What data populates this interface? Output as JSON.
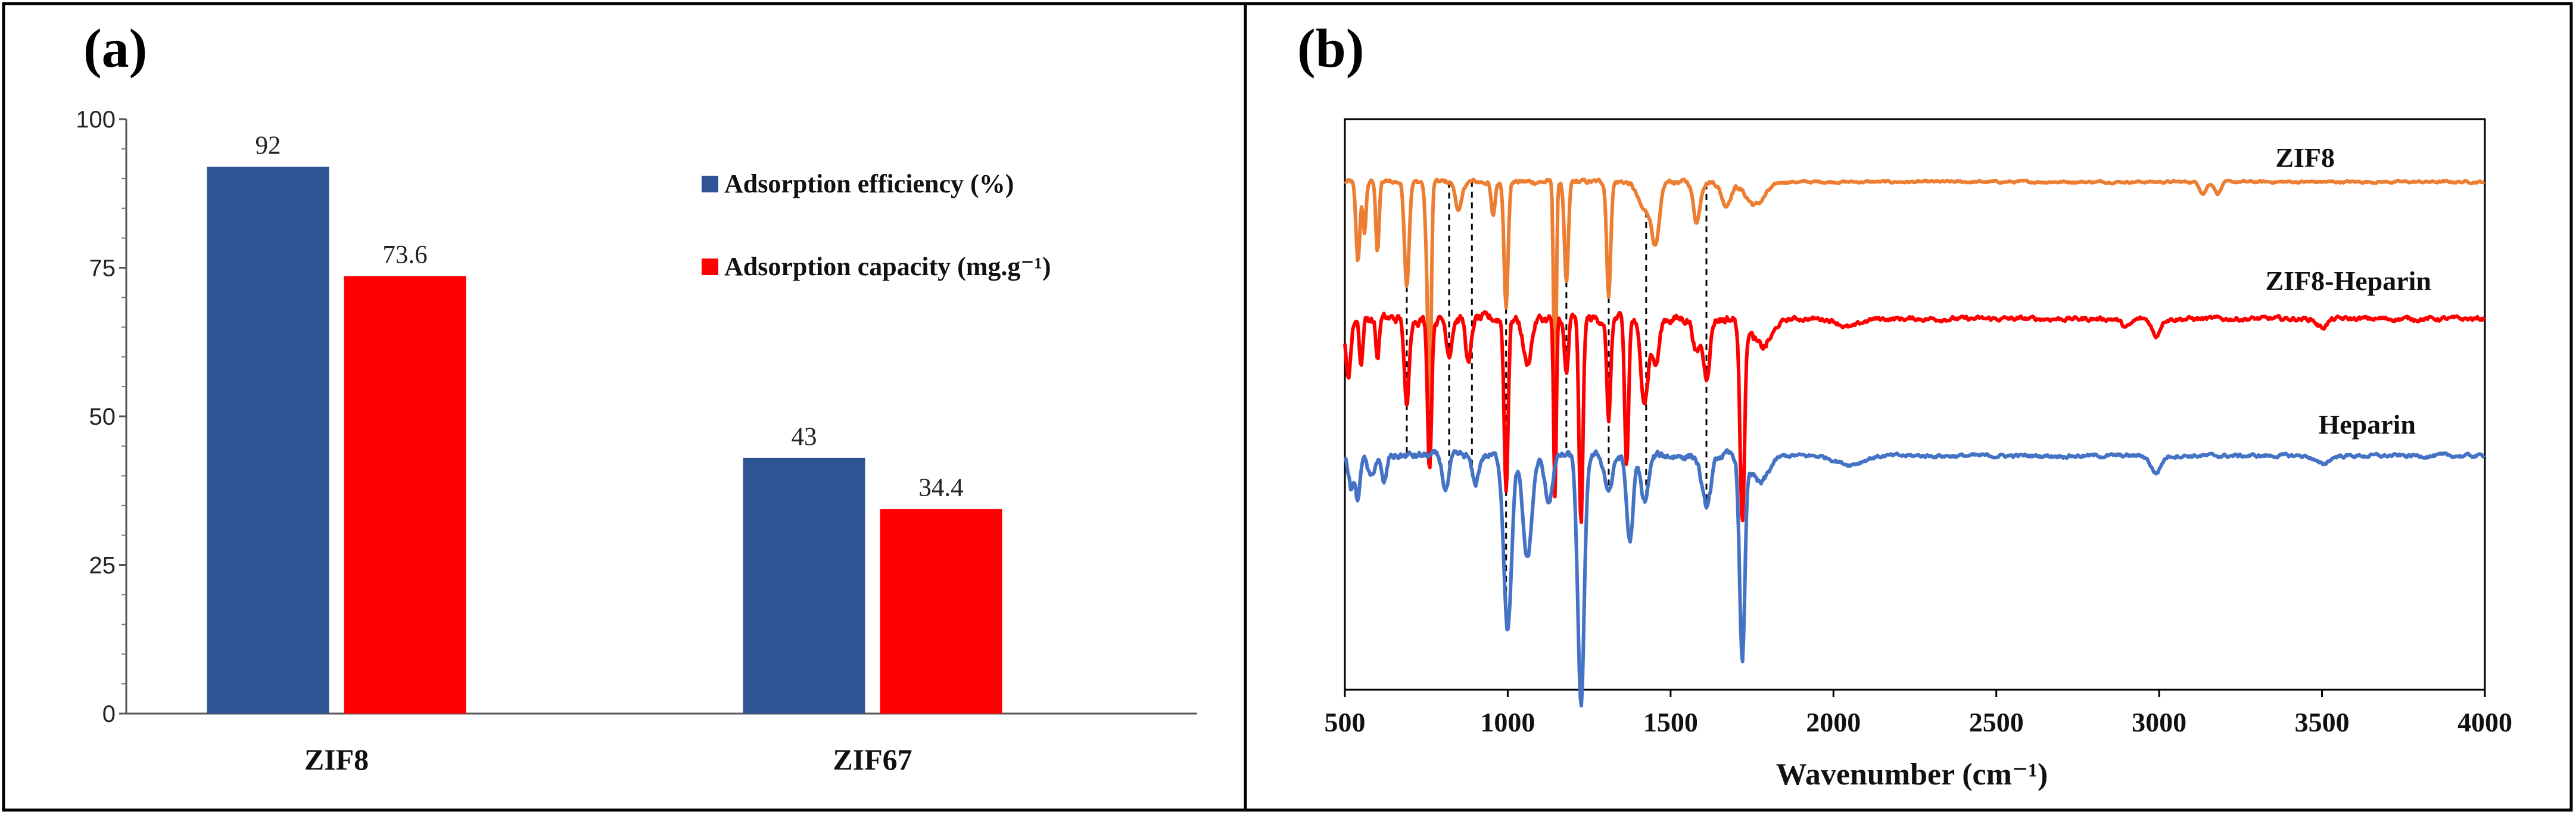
{
  "colors": {
    "efficiency": "#2F5496",
    "capacity": "#FF0000",
    "zif8_line": "#ED7D31",
    "zif8_heparin_line": "#FF0000",
    "heparin_line": "#4472C4"
  },
  "chart_data": [
    {
      "panel": "(a)",
      "type": "bar",
      "categories": [
        "ZIF8",
        "ZIF67"
      ],
      "series": [
        {
          "name": "Adsorption efficiency (%)",
          "values": [
            92,
            43
          ],
          "labels": [
            "92",
            "43"
          ]
        },
        {
          "name": "Adsorption capacity (mg.g⁻¹)",
          "values": [
            73.6,
            34.4
          ],
          "labels": [
            "73.6",
            "34.4"
          ]
        }
      ],
      "yticks": [
        "0",
        "25",
        "50",
        "75",
        "100"
      ],
      "ylim": [
        0,
        100
      ],
      "legend_position": "top-right"
    },
    {
      "panel": "(b)",
      "type": "line",
      "xlabel": "Wavenumber (cm⁻¹)",
      "xlim": [
        500,
        4000
      ],
      "xticks": [
        "500",
        "1000",
        "1500",
        "2000",
        "2500",
        "3000",
        "3500",
        "4000"
      ],
      "series": [
        {
          "name": "ZIF8",
          "baseline": 89,
          "noise": 0.6,
          "peaks": [
            [
              540,
              14,
              6
            ],
            [
              560,
              9,
              5
            ],
            [
              600,
              12,
              5
            ],
            [
              690,
              18,
              7
            ],
            [
              750,
              8,
              5
            ],
            [
              760,
              40,
              5
            ],
            [
              850,
              5,
              10
            ],
            [
              955,
              6,
              6
            ],
            [
              995,
              22,
              6
            ],
            [
              1145,
              40,
              4
            ],
            [
              1180,
              18,
              6
            ],
            [
              1310,
              20,
              6
            ],
            [
              1420,
              5,
              20
            ],
            [
              1455,
              10,
              12
            ],
            [
              1580,
              7,
              10
            ],
            [
              1670,
              4,
              14
            ],
            [
              1760,
              4,
              30
            ],
            [
              3135,
              2,
              10
            ],
            [
              3180,
              2,
              10
            ]
          ]
        },
        {
          "name": "ZIF8-Heparin",
          "baseline": 65,
          "noise": 1.2,
          "peaks": [
            [
              510,
              10,
              8
            ],
            [
              550,
              8,
              5
            ],
            [
              600,
              7,
              5
            ],
            [
              690,
              16,
              7
            ],
            [
              760,
              26,
              6
            ],
            [
              820,
              6,
              8
            ],
            [
              880,
              8,
              8
            ],
            [
              995,
              30,
              6
            ],
            [
              1060,
              8,
              12
            ],
            [
              1145,
              32,
              4
            ],
            [
              1180,
              10,
              6
            ],
            [
              1225,
              36,
              6
            ],
            [
              1310,
              18,
              6
            ],
            [
              1365,
              26,
              6
            ],
            [
              1420,
              14,
              12
            ],
            [
              1455,
              8,
              10
            ],
            [
              1580,
              6,
              10
            ],
            [
              1610,
              10,
              10
            ],
            [
              1720,
              34,
              7
            ],
            [
              1780,
              5,
              30
            ],
            [
              2050,
              1.5,
              30
            ],
            [
              2900,
              1.5,
              15
            ],
            [
              2990,
              3,
              12
            ],
            [
              3500,
              1.5,
              15
            ]
          ]
        },
        {
          "name": "Heparin",
          "baseline": 41,
          "noise": 1.0,
          "peaks": [
            [
              520,
              6,
              8
            ],
            [
              540,
              8,
              6
            ],
            [
              580,
              4,
              10
            ],
            [
              620,
              5,
              8
            ],
            [
              810,
              6,
              10
            ],
            [
              900,
              5,
              10
            ],
            [
              1000,
              30,
              12
            ],
            [
              1060,
              18,
              14
            ],
            [
              1125,
              8,
              12
            ],
            [
              1225,
              44,
              10
            ],
            [
              1310,
              6,
              12
            ],
            [
              1375,
              15,
              10
            ],
            [
              1420,
              8,
              12
            ],
            [
              1610,
              9,
              14
            ],
            [
              1720,
              36,
              8
            ],
            [
              1775,
              5,
              25
            ],
            [
              2050,
              1.5,
              40
            ],
            [
              2990,
              3,
              15
            ],
            [
              3500,
              1.5,
              20
            ]
          ]
        }
      ],
      "series_labels": [
        "ZIF8",
        "ZIF8-Heparin",
        "Heparin"
      ],
      "guide_lines_at": [
        690,
        760,
        820,
        890,
        995,
        1180,
        1310,
        1425,
        1610
      ]
    }
  ]
}
